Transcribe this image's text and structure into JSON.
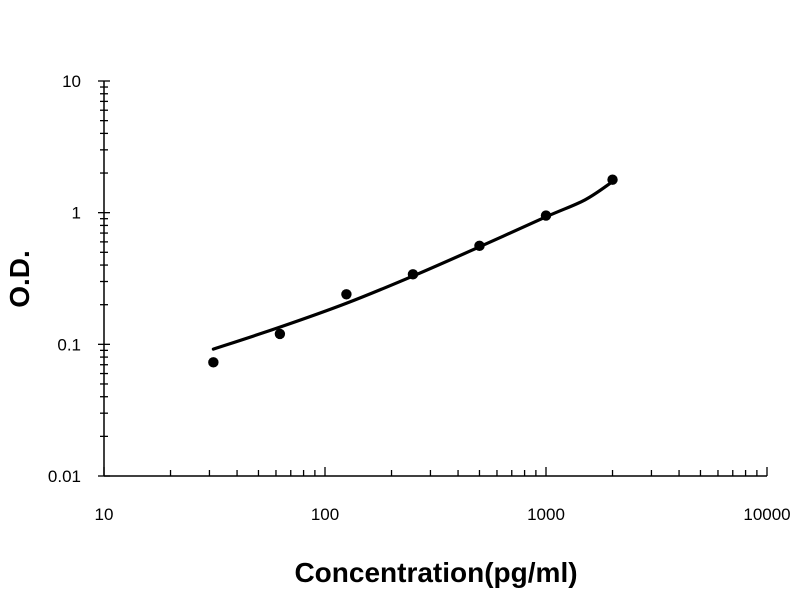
{
  "chart_data": {
    "type": "scatter",
    "title": "",
    "xlabel": "Concentration(pg/ml)",
    "ylabel": "O.D.",
    "x_scale": "log",
    "y_scale": "log",
    "xlim": [
      10,
      10000
    ],
    "ylim": [
      0.01,
      10
    ],
    "x_ticks": [
      "10",
      "100",
      "1000",
      "10000"
    ],
    "y_ticks": [
      "0.01",
      "0.1",
      "1",
      "10"
    ],
    "grid": false,
    "legend": "none",
    "series": [
      {
        "points": [
          {
            "x": 31.25,
            "y": 0.073
          },
          {
            "x": 62.5,
            "y": 0.12
          },
          {
            "x": 125,
            "y": 0.24
          },
          {
            "x": 250,
            "y": 0.34
          },
          {
            "x": 500,
            "y": 0.56
          },
          {
            "x": 1000,
            "y": 0.95
          },
          {
            "x": 2000,
            "y": 1.78
          }
        ]
      }
    ],
    "fit_curve": [
      {
        "x": 31.25,
        "y": 0.092
      },
      {
        "x": 62.5,
        "y": 0.135
      },
      {
        "x": 125,
        "y": 0.205
      },
      {
        "x": 250,
        "y": 0.33
      },
      {
        "x": 500,
        "y": 0.55
      },
      {
        "x": 1000,
        "y": 0.93
      },
      {
        "x": 1500,
        "y": 1.25
      },
      {
        "x": 2000,
        "y": 1.72
      }
    ],
    "colors": {
      "marker": "#000000",
      "curve": "#000000",
      "axis": "#000000"
    }
  }
}
